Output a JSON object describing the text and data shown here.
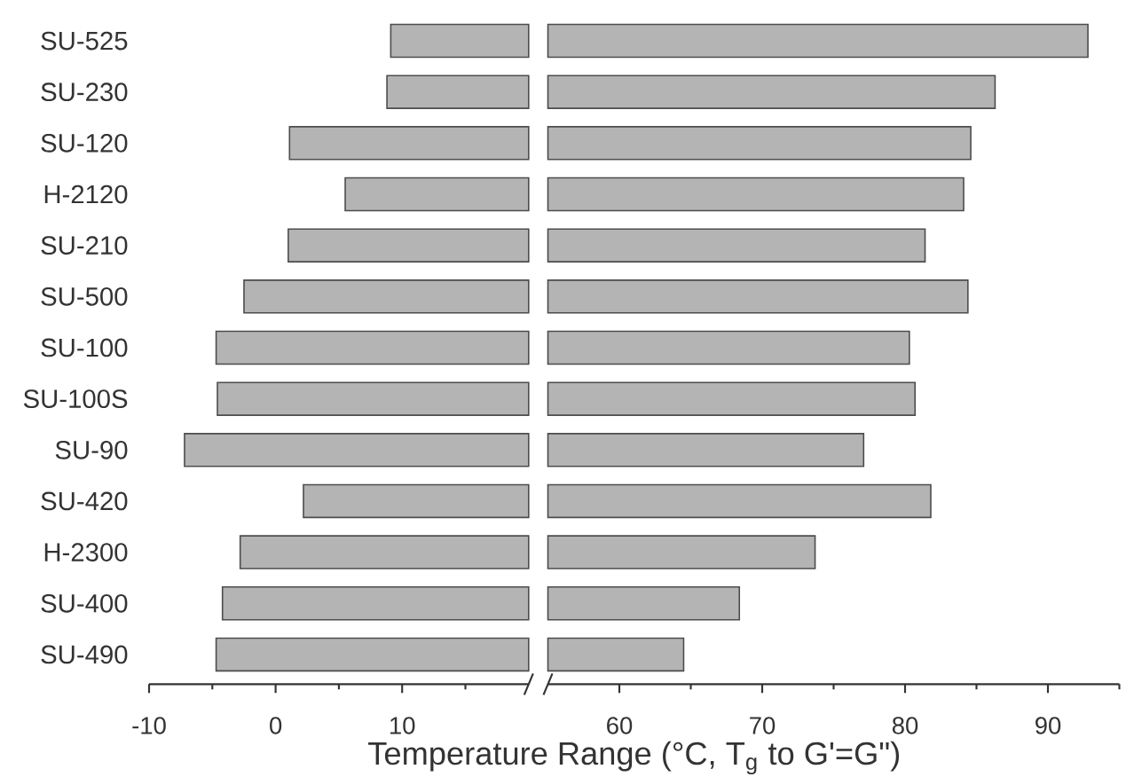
{
  "chart_data": [
    {
      "type": "bar",
      "orientation": "horizontal",
      "categories": [
        "SU-525",
        "SU-230",
        "SU-120",
        "H-2120",
        "SU-210",
        "SU-500",
        "SU-100",
        "SU-100S",
        "SU-90",
        "SU-420",
        "H-2300",
        "SU-400",
        "SU-490"
      ],
      "base": [
        9.1,
        8.8,
        1.1,
        5.5,
        1.0,
        -2.5,
        -4.7,
        -4.6,
        -7.2,
        2.2,
        -2.8,
        -4.2,
        -4.7
      ],
      "values": [
        10.9,
        11.2,
        18.9,
        14.5,
        19.0,
        22.5,
        24.7,
        24.6,
        27.2,
        17.8,
        22.8,
        24.2,
        24.7
      ],
      "color": "#b4b4b4",
      "xlim": [
        -10,
        20
      ],
      "xticks": [
        -10,
        {
          "value": -5,
          "label": null
        },
        0,
        {
          "value": 5,
          "label": null
        },
        10,
        {
          "value": 15,
          "label": null
        }
      ],
      "xlabel": "Temperature Range (°C, T$_{g}$ to G'=G\")"
    },
    {
      "type": "bar",
      "orientation": "horizontal",
      "categories": [
        null,
        null,
        null,
        null,
        null,
        null,
        null,
        null,
        null,
        null,
        null,
        null,
        null
      ],
      "base": [
        55,
        55,
        55,
        55,
        55,
        55,
        55,
        55,
        55,
        55,
        55,
        55,
        55
      ],
      "values": [
        37.8,
        31.3,
        29.6,
        29.1,
        26.4,
        29.4,
        25.3,
        25.7,
        22.1,
        26.8,
        18.7,
        13.4,
        9.5
      ],
      "color": "#b4b4b4",
      "xlim": [
        55,
        95
      ],
      "xticks": [
        60,
        {
          "value": 65,
          "label": null
        },
        70,
        {
          "value": 75,
          "label": null
        },
        80,
        {
          "value": 85,
          "label": null
        },
        90,
        {
          "value": 95,
          "label": null
        }
      ]
    }
  ]
}
